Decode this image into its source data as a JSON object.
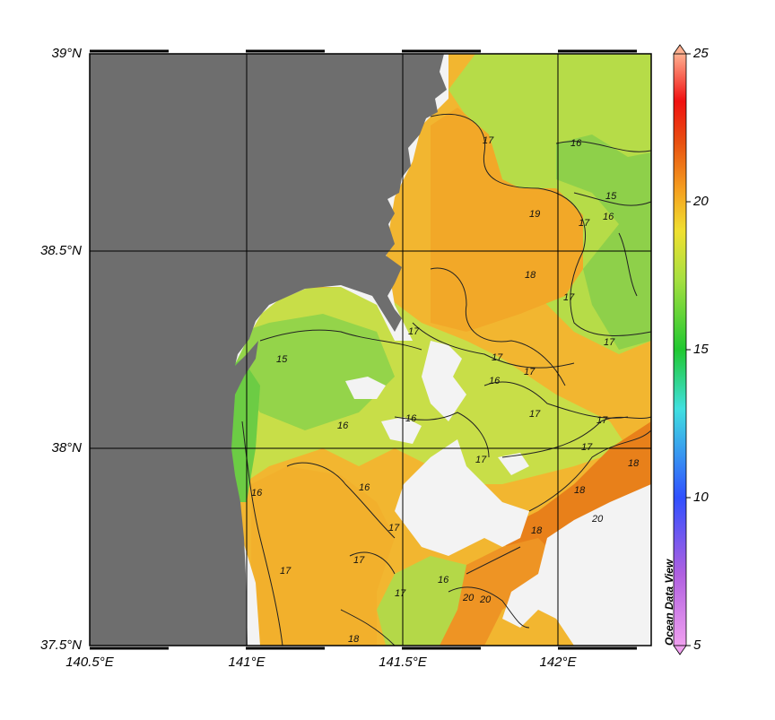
{
  "map": {
    "lat_labels": [
      "39°N",
      "38.5°N",
      "38°N",
      "37.5°N"
    ],
    "lon_labels": [
      "140.5°E",
      "141°E",
      "141.5°E",
      "142°E"
    ],
    "lat_range": [
      37.5,
      39.0
    ],
    "lon_range": [
      140.5,
      142.3
    ],
    "contour_labels": [
      "15",
      "16",
      "17",
      "18",
      "19",
      "20"
    ]
  },
  "colorbar": {
    "ticks": [
      "25",
      "20",
      "15",
      "10",
      "5"
    ],
    "range": [
      5,
      25
    ],
    "watermark": "Ocean Data View"
  },
  "colors": {
    "land": "#6e6e6e",
    "no_data": "#f2f2f2",
    "sst_15": "#3cc43c",
    "sst_16": "#9ad94a",
    "sst_17": "#d4e045",
    "sst_18": "#f2b428",
    "sst_19": "#ee9a20",
    "sst_20": "#e07412"
  }
}
